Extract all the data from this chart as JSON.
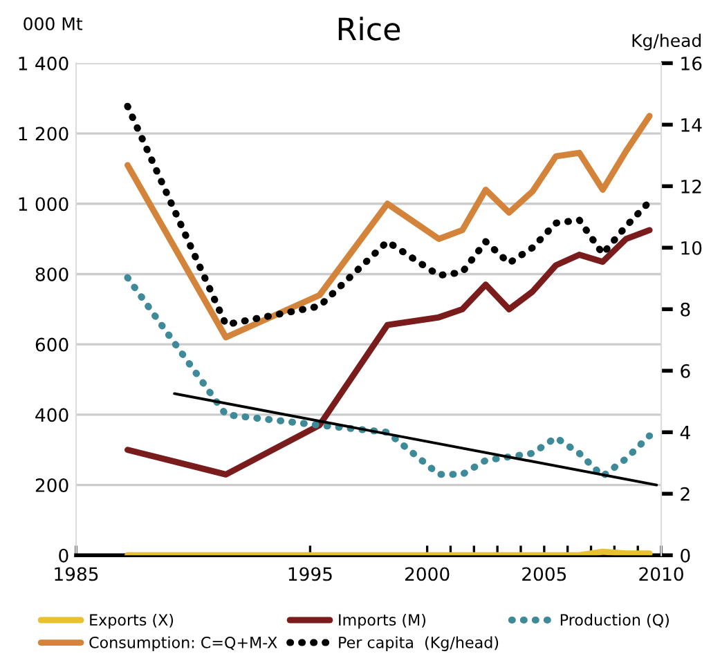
{
  "chart_data": {
    "type": "line",
    "title": "Rice",
    "ylabel": "000 Mt",
    "y2label": "Kg/head",
    "x": [
      1987.2,
      1991.4,
      1995.4,
      1998.3,
      2000.5,
      2001.5,
      2002.5,
      2003.5,
      2004.5,
      2005.5,
      2006.5,
      2007.5,
      2008.5,
      2009.5
    ],
    "xlim": [
      1985,
      2010
    ],
    "xticks": [
      1985,
      1995,
      2000,
      {
        "value": 2001,
        "label": null
      },
      {
        "value": 2002,
        "label": null
      },
      {
        "value": 2003,
        "label": null
      },
      {
        "value": 2004,
        "label": null
      },
      2005,
      {
        "value": 2006,
        "label": null
      },
      {
        "value": 2007,
        "label": null
      },
      {
        "value": 2008,
        "label": null
      },
      {
        "value": 2009,
        "label": null
      },
      2010
    ],
    "ylim": [
      0,
      1400
    ],
    "yticks": [
      0,
      200,
      400,
      600,
      800,
      {
        "value": 1000,
        "label": "1 000"
      },
      {
        "value": 1200,
        "label": "1 200"
      },
      {
        "value": 1400,
        "label": "1 400"
      }
    ],
    "y2lim": [
      0,
      16
    ],
    "y2ticks": [
      0,
      2,
      4,
      6,
      8,
      10,
      12,
      14,
      16
    ],
    "grid": "y",
    "legend": "bottom",
    "series": [
      {
        "name": "Exports (X)",
        "color": "#e8c030",
        "line_style": "solid",
        "values": [
          0,
          0,
          0,
          0,
          0,
          0,
          0,
          0,
          0,
          0,
          0,
          10,
          5,
          5
        ]
      },
      {
        "name": "Imports (M)",
        "color": "#7b1c1c",
        "line_style": "solid",
        "values": [
          300,
          230,
          370,
          655,
          677,
          700,
          770,
          700,
          750,
          825,
          855,
          835,
          900,
          925
        ]
      },
      {
        "name": "Production (Q)",
        "color": "#3f8a99",
        "line_style": "dotted",
        "values": [
          790,
          400,
          370,
          350,
          230,
          230,
          270,
          280,
          290,
          335,
          290,
          225,
          275,
          340
        ]
      },
      {
        "name": "Consumption: C=Q+M-X",
        "color": "#d4833a",
        "line_style": "solid",
        "values": [
          1110,
          620,
          740,
          1000,
          900,
          925,
          1040,
          975,
          1035,
          1135,
          1145,
          1040,
          1150,
          1250
        ]
      },
      {
        "name": "Per capita  (Kg/head)",
        "color": "#000000",
        "line_style": "dotted",
        "axis": "y2",
        "values": [
          14.6,
          7.5,
          8.1,
          10.2,
          9.1,
          9.2,
          10.2,
          9.5,
          10.0,
          10.8,
          10.9,
          9.8,
          10.7,
          11.5
        ]
      },
      {
        "type": "line",
        "color": "#000000",
        "line_style": "solid",
        "x": [
          1989.2,
          2009.8
        ],
        "values": [
          460,
          200
        ]
      }
    ]
  }
}
